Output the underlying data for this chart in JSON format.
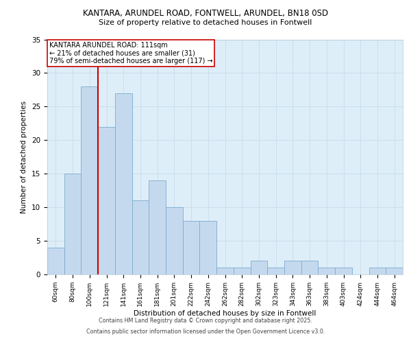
{
  "title_line1": "KANTARA, ARUNDEL ROAD, FONTWELL, ARUNDEL, BN18 0SD",
  "title_line2": "Size of property relative to detached houses in Fontwell",
  "xlabel": "Distribution of detached houses by size in Fontwell",
  "ylabel": "Number of detached properties",
  "categories": [
    "60sqm",
    "80sqm",
    "100sqm",
    "121sqm",
    "141sqm",
    "161sqm",
    "181sqm",
    "201sqm",
    "222sqm",
    "242sqm",
    "262sqm",
    "282sqm",
    "302sqm",
    "323sqm",
    "343sqm",
    "363sqm",
    "383sqm",
    "403sqm",
    "424sqm",
    "444sqm",
    "464sqm"
  ],
  "values": [
    4,
    15,
    28,
    22,
    27,
    11,
    14,
    10,
    8,
    8,
    1,
    1,
    2,
    1,
    2,
    2,
    1,
    1,
    0,
    1,
    1
  ],
  "bar_color": "#c5d9ee",
  "bar_edge_color": "#7aabcf",
  "grid_color": "#ccdded",
  "background_color": "#deeef8",
  "vline_x": 2.5,
  "vline_color": "#cc0000",
  "annotation_box_text": "KANTARA ARUNDEL ROAD: 111sqm\n← 21% of detached houses are smaller (31)\n79% of semi-detached houses are larger (117) →",
  "footer_line1": "Contains HM Land Registry data © Crown copyright and database right 2025.",
  "footer_line2": "Contains public sector information licensed under the Open Government Licence v3.0.",
  "ylim": [
    0,
    35
  ],
  "yticks": [
    0,
    5,
    10,
    15,
    20,
    25,
    30,
    35
  ]
}
